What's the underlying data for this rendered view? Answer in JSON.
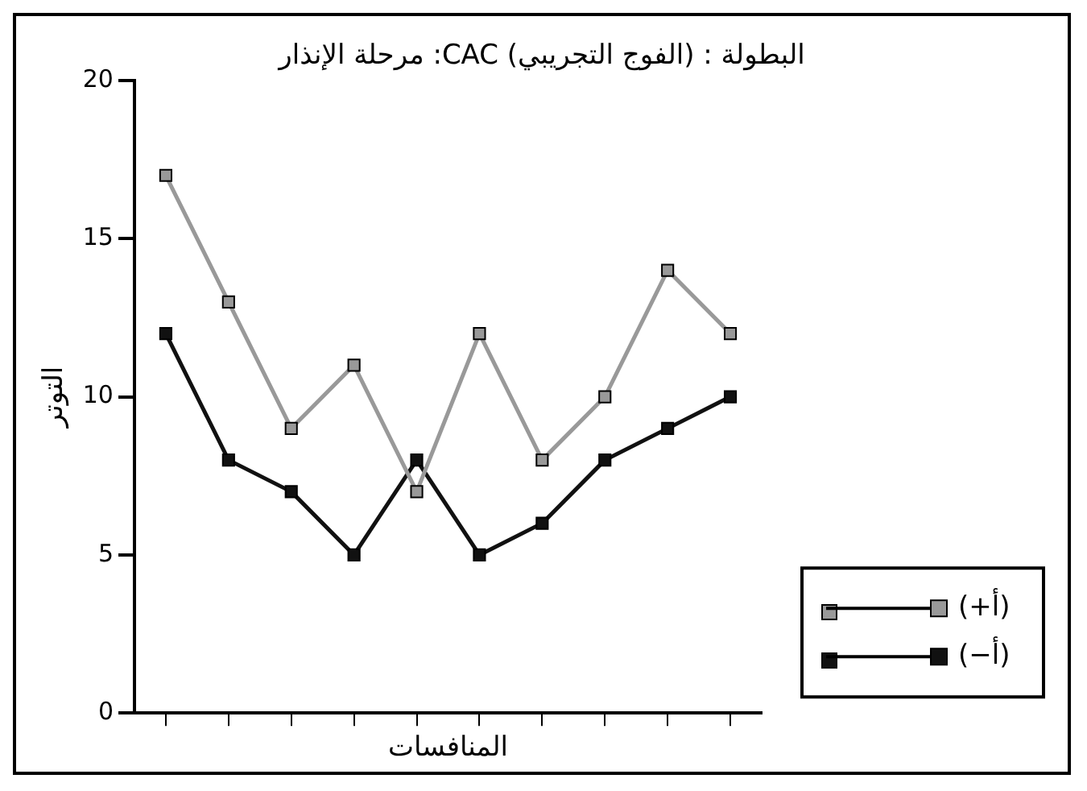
{
  "chart_data": {
    "type": "line",
    "title": "البطولة : (الفوج التجريبي) CAC: مرحلة الإنذار",
    "xlabel": "المنافسات",
    "ylabel": "التوتر",
    "categories": [
      null,
      null,
      null,
      null,
      null,
      null,
      null,
      null,
      null,
      null
    ],
    "series": [
      {
        "name": "(أ+)",
        "color": "#999999",
        "values": [
          17,
          13,
          9,
          11,
          7,
          12,
          8,
          10,
          14,
          12
        ]
      },
      {
        "name": "(أ−)",
        "color": "#111111",
        "values": [
          12,
          8,
          7,
          5,
          8,
          5,
          6,
          8,
          9,
          10
        ]
      }
    ],
    "ylim": [
      0,
      20
    ],
    "yticks": [
      0,
      5,
      10,
      15,
      20
    ],
    "tick_labels": "y",
    "grid": false,
    "legend": "bottom right",
    "marker": "square",
    "line_style": "solid"
  }
}
